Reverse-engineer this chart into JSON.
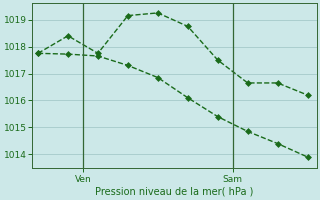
{
  "line1_x": [
    0,
    1,
    2,
    3,
    4,
    5,
    6,
    7,
    8,
    9
  ],
  "line1_y": [
    1017.75,
    1018.4,
    1017.75,
    1019.15,
    1019.25,
    1018.75,
    1017.5,
    1016.65,
    1016.65,
    1016.2
  ],
  "line2_x": [
    0,
    1,
    2,
    3,
    4,
    5,
    6,
    7,
    8,
    9
  ],
  "line2_y": [
    1017.75,
    1017.72,
    1017.65,
    1017.3,
    1016.85,
    1016.1,
    1015.4,
    1014.85,
    1014.4,
    1013.9
  ],
  "ven_x": 1.5,
  "sam_x": 6.5,
  "ylim": [
    1013.5,
    1019.6
  ],
  "yticks": [
    1014,
    1015,
    1016,
    1017,
    1018,
    1019
  ],
  "xlim": [
    -0.2,
    9.3
  ],
  "line_color": "#1a6b1a",
  "bg_color": "#cce8e8",
  "grid_color": "#aacece",
  "xlabel": "Pression niveau de la mer( hPa )",
  "markersize": 3,
  "linewidth": 1.0,
  "linestyle": "--",
  "xlabel_fontsize": 7,
  "tick_fontsize": 6.5,
  "vline_color": "#336633"
}
